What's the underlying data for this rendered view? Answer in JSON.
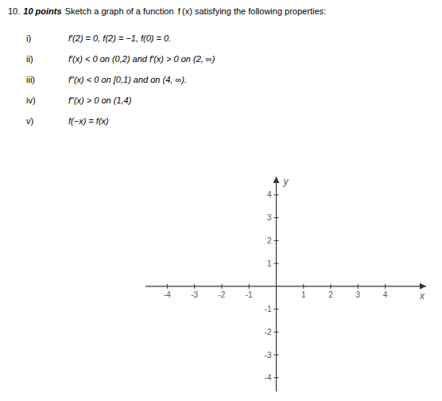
{
  "chart_data": {
    "type": "axes",
    "title": [
      "10.",
      "10 points",
      "Sketch a graph of a function  f (x) satisfying the following properties:"
    ],
    "annotations": [
      [
        "i)",
        "f′(2) = 0, f(2) = −1, f(0) = 0."
      ],
      [
        "ii)",
        "f′(x) < 0 on (0,2) and f′(x) > 0 on (2, ∞)"
      ],
      [
        "iii)",
        "f″(x) < 0 on [0,1) and on (4, ∞)."
      ],
      [
        "iv)",
        "f″(x) > 0 on (1,4)"
      ],
      [
        "v)",
        "f(−x) = f(x)"
      ]
    ],
    "xlabel": "x",
    "ylabel": "y",
    "xlim": [
      -4.8,
      5.5
    ],
    "ylim": [
      -4.6,
      4.8
    ],
    "xticks": [
      -4,
      -3,
      -2,
      -1,
      1,
      2,
      3,
      4
    ],
    "yticks": [
      -4,
      -3,
      -2,
      -1,
      1,
      2,
      3,
      4
    ],
    "grid": false
  }
}
